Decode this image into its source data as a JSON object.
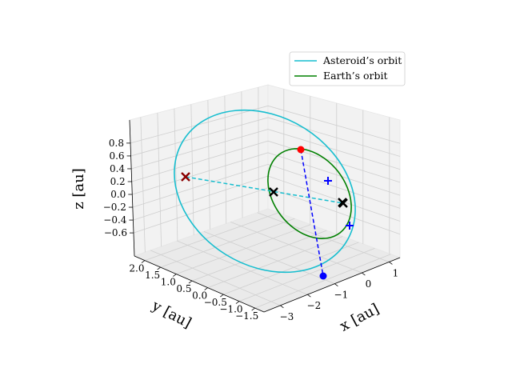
{
  "chart_data": {
    "type": "line3d",
    "title": "",
    "xlabel": "x [au]",
    "ylabel": "y [au]",
    "zlabel": "z [au]",
    "xticks": [
      "−3",
      "−2",
      "−1",
      "0",
      "1"
    ],
    "yticks": [
      "−1.5",
      "−1.0",
      "−0.5",
      "0.0",
      "0.5",
      "1.0",
      "1.5",
      "2.0"
    ],
    "zticks": [
      "−0.6",
      "−0.4",
      "−0.2",
      "0.0",
      "0.2",
      "0.4",
      "0.6",
      "0.8"
    ],
    "grid": true,
    "legend_position": "upper-right",
    "series": [
      {
        "name": "Asteroid’s orbit",
        "color": "#17becf",
        "kind": "ellipse"
      },
      {
        "name": "Earth’s orbit",
        "color": "#008000",
        "kind": "ellipse"
      }
    ],
    "markers": [
      {
        "label": "asteroid-node-1",
        "symbol": "x",
        "color": "#000000"
      },
      {
        "label": "asteroid-node-2",
        "symbol": "x",
        "color": "#000000"
      },
      {
        "label": "asteroid-node-3",
        "symbol": "x",
        "color": "#8b0000"
      },
      {
        "label": "sun-point",
        "symbol": "x",
        "color": "#000000"
      },
      {
        "label": "asteroid-perihelion",
        "symbol": "circle",
        "color": "#ff0000"
      },
      {
        "label": "asteroid-aphelion",
        "symbol": "circle",
        "color": "#0000ff"
      },
      {
        "label": "earth-point-1",
        "symbol": "plus",
        "color": "#0000ff"
      },
      {
        "label": "earth-point-2",
        "symbol": "plus",
        "color": "#0000ff"
      }
    ],
    "lines": [
      {
        "label": "line-of-nodes",
        "style": "dashed",
        "color": "#17becf"
      },
      {
        "label": "line-of-apsides",
        "style": "dashed",
        "color": "#0000ff"
      }
    ]
  }
}
